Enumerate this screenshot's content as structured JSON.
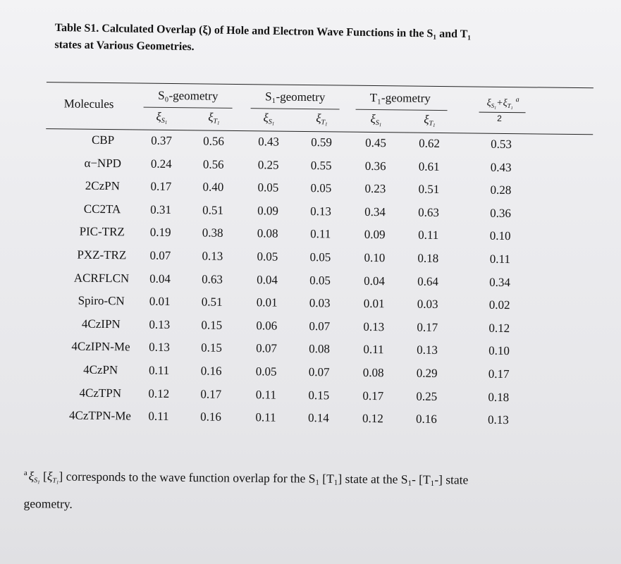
{
  "caption": {
    "line1": "Table S1. Calculated Overlap (ξ) of Hole and Electron Wave Functions in the S₁ and T₁",
    "line2": "states at Various Geometries."
  },
  "table": {
    "molecules_header": "Molecules",
    "group_headers": [
      "S₀-geometry",
      "S₁-geometry",
      "T₁-geometry"
    ],
    "sub_headers": {
      "symbol": "ξ",
      "s_label": "S",
      "t_label": "T",
      "index": "1"
    },
    "average_header": {
      "numerator": "ξ",
      "plus": "+",
      "footnote_mark": "a",
      "denominator": "2"
    },
    "rows": [
      {
        "molecule": "CBP",
        "values": [
          "0.37",
          "0.56",
          "0.43",
          "0.59",
          "0.45",
          "0.62",
          "0.53"
        ]
      },
      {
        "molecule": "α−NPD",
        "values": [
          "0.24",
          "0.56",
          "0.25",
          "0.55",
          "0.36",
          "0.61",
          "0.43"
        ]
      },
      {
        "molecule": "2CzPN",
        "values": [
          "0.17",
          "0.40",
          "0.05",
          "0.05",
          "0.23",
          "0.51",
          "0.28"
        ]
      },
      {
        "molecule": "CC2TA",
        "values": [
          "0.31",
          "0.51",
          "0.09",
          "0.13",
          "0.34",
          "0.63",
          "0.36"
        ]
      },
      {
        "molecule": "PIC-TRZ",
        "values": [
          "0.19",
          "0.38",
          "0.08",
          "0.11",
          "0.09",
          "0.11",
          "0.10"
        ]
      },
      {
        "molecule": "PXZ-TRZ",
        "values": [
          "0.07",
          "0.13",
          "0.05",
          "0.05",
          "0.10",
          "0.18",
          "0.11"
        ]
      },
      {
        "molecule": "ACRFLCN",
        "values": [
          "0.04",
          "0.63",
          "0.04",
          "0.05",
          "0.04",
          "0.64",
          "0.34"
        ]
      },
      {
        "molecule": "Spiro-CN",
        "values": [
          "0.01",
          "0.51",
          "0.01",
          "0.03",
          "0.01",
          "0.03",
          "0.02"
        ]
      },
      {
        "molecule": "4CzIPN",
        "values": [
          "0.13",
          "0.15",
          "0.06",
          "0.07",
          "0.13",
          "0.17",
          "0.12"
        ]
      },
      {
        "molecule": "4CzIPN-Me",
        "values": [
          "0.13",
          "0.15",
          "0.07",
          "0.08",
          "0.11",
          "0.13",
          "0.10"
        ]
      },
      {
        "molecule": "4CzPN",
        "values": [
          "0.11",
          "0.16",
          "0.05",
          "0.07",
          "0.08",
          "0.29",
          "0.17"
        ]
      },
      {
        "molecule": "4CzTPN",
        "values": [
          "0.12",
          "0.17",
          "0.11",
          "0.15",
          "0.17",
          "0.25",
          "0.18"
        ]
      },
      {
        "molecule": "4CzTPN-Me",
        "values": [
          "0.11",
          "0.16",
          "0.11",
          "0.14",
          "0.12",
          "0.16",
          "0.13"
        ]
      }
    ]
  },
  "footnote": {
    "mark": "a",
    "text_part1": " corresponds to the wave function overlap for the S",
    "text_part2": " [T",
    "text_part3": "] state at the S",
    "text_part4": "- [T",
    "text_part5": "-] state",
    "line2": "geometry."
  }
}
